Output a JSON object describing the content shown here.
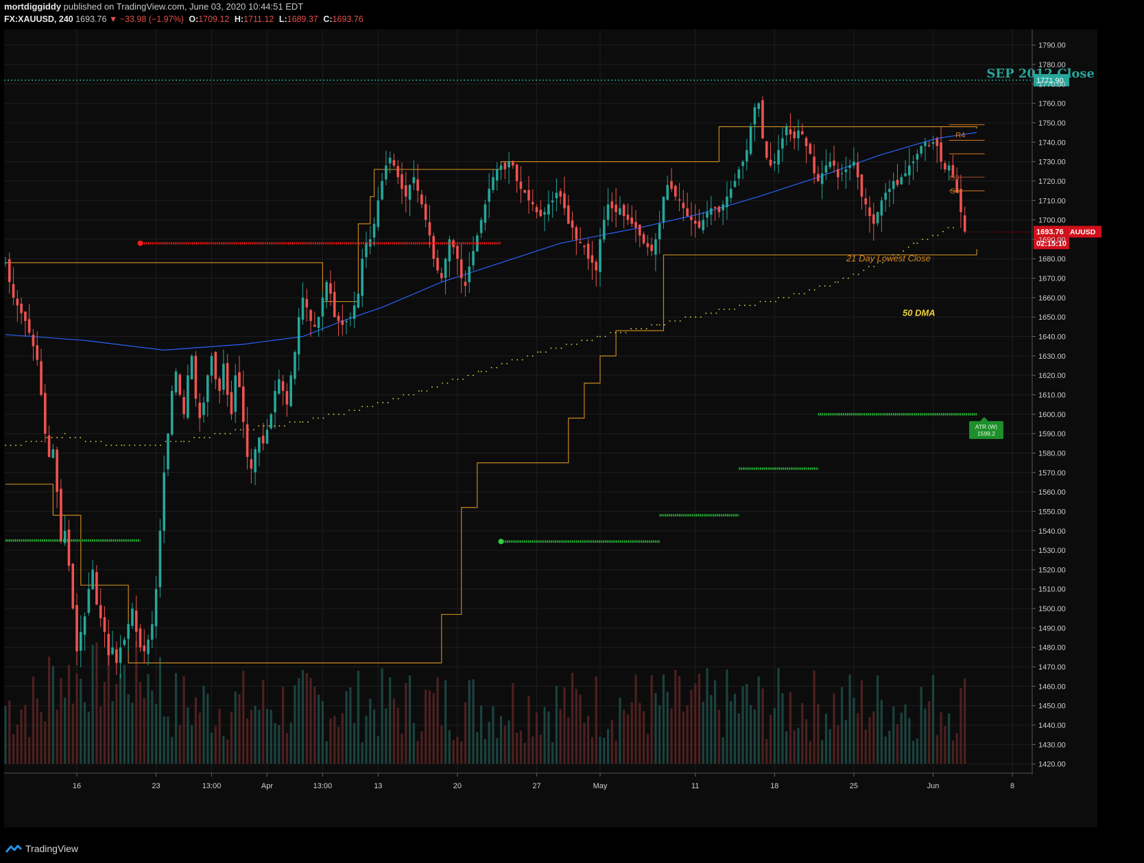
{
  "header": {
    "publisher": "mortdiggiddy",
    "published_text": "published on TradingView.com, June 03, 2020 10:44:51 EDT",
    "symbol": "FX:XAUUSD, 240",
    "last": "1693.76",
    "change": "▼ −33.98 (−1.97%)",
    "open_label": "O:",
    "open": "1709.12",
    "high_label": "H:",
    "high": "1711.12",
    "low_label": "L:",
    "low": "1689.37",
    "close_label": "C:",
    "close": "1693.76"
  },
  "footer": {
    "brand": "TradingView"
  },
  "colors": {
    "background": "#0c0c0c",
    "grid": "#1e1e1e",
    "up_candle": "#26a69a",
    "down_candle": "#ef5350",
    "ma_blue": "#2962ff",
    "lowest_close": "#c7871f",
    "dma50": "#e6e04a",
    "resistance_red": "#ff1a1a",
    "support_green": "#2ecc40",
    "sep2012": "#26a69a",
    "price_tag": "#d0101a"
  },
  "chart_data": {
    "type": "candlestick",
    "symbol": "XAUUSD",
    "timeframe": "240",
    "y_axis": {
      "range": [
        1416,
        1798
      ],
      "ticks": [
        "1790.00",
        "1780.00",
        "1770.00",
        "1760.00",
        "1750.00",
        "1740.00",
        "1730.00",
        "1720.00",
        "1710.00",
        "1700.00",
        "1690.00",
        "1680.00",
        "1670.00",
        "1660.00",
        "1650.00",
        "1640.00",
        "1630.00",
        "1620.00",
        "1610.00",
        "1600.00",
        "1590.00",
        "1580.00",
        "1570.00",
        "1560.00",
        "1550.00",
        "1540.00",
        "1530.00",
        "1520.00",
        "1510.00",
        "1500.00",
        "1490.00",
        "1480.00",
        "1470.00",
        "1460.00",
        "1450.00",
        "1440.00",
        "1430.00",
        "1420.00"
      ]
    },
    "x_axis": {
      "ticks": [
        {
          "label": "16",
          "bar": 18
        },
        {
          "label": "23",
          "bar": 38
        },
        {
          "label": "13:00",
          "bar": 52
        },
        {
          "label": "Apr",
          "bar": 66
        },
        {
          "label": "13:00",
          "bar": 80
        },
        {
          "label": "13",
          "bar": 94
        },
        {
          "label": "20",
          "bar": 114
        },
        {
          "label": "27",
          "bar": 134
        },
        {
          "label": "May",
          "bar": 150
        },
        {
          "label": "11",
          "bar": 174
        },
        {
          "label": "18",
          "bar": 194
        },
        {
          "label": "25",
          "bar": 214
        },
        {
          "label": "Jun",
          "bar": 234
        },
        {
          "label": "8",
          "bar": 254
        }
      ],
      "bar_count_range": [
        0,
        259
      ]
    },
    "closes": [
      1678,
      1668,
      1660,
      1656,
      1652,
      1648,
      1642,
      1635,
      1628,
      1610,
      1590,
      1578,
      1582,
      1560,
      1535,
      1540,
      1522,
      1500,
      1478,
      1488,
      1496,
      1510,
      1520,
      1502,
      1495,
      1488,
      1476,
      1480,
      1472,
      1480,
      1484,
      1492,
      1500,
      1488,
      1480,
      1478,
      1484,
      1492,
      1510,
      1540,
      1570,
      1590,
      1612,
      1622,
      1610,
      1600,
      1620,
      1630,
      1608,
      1598,
      1606,
      1620,
      1630,
      1618,
      1612,
      1626,
      1610,
      1600,
      1620,
      1614,
      1596,
      1578,
      1572,
      1582,
      1588,
      1585,
      1592,
      1600,
      1612,
      1618,
      1612,
      1605,
      1620,
      1632,
      1650,
      1660,
      1655,
      1648,
      1645,
      1650,
      1660,
      1668,
      1662,
      1650,
      1648,
      1646,
      1648,
      1650,
      1656,
      1662,
      1680,
      1688,
      1690,
      1698,
      1710,
      1720,
      1728,
      1732,
      1728,
      1722,
      1716,
      1712,
      1718,
      1722,
      1715,
      1708,
      1700,
      1692,
      1680,
      1674,
      1670,
      1680,
      1690,
      1686,
      1680,
      1670,
      1666,
      1676,
      1684,
      1692,
      1700,
      1708,
      1716,
      1722,
      1726,
      1728,
      1726,
      1730,
      1728,
      1720,
      1716,
      1714,
      1710,
      1708,
      1704,
      1702,
      1704,
      1708,
      1710,
      1714,
      1712,
      1706,
      1698,
      1696,
      1690,
      1688,
      1686,
      1680,
      1678,
      1674,
      1690,
      1700,
      1708,
      1706,
      1704,
      1706,
      1702,
      1700,
      1698,
      1696,
      1692,
      1688,
      1686,
      1684,
      1690,
      1698,
      1712,
      1718,
      1716,
      1712,
      1710,
      1706,
      1702,
      1700,
      1698,
      1696,
      1700,
      1704,
      1706,
      1706,
      1704,
      1708,
      1712,
      1716,
      1720,
      1726,
      1730,
      1736,
      1748,
      1758,
      1760,
      1742,
      1732,
      1728,
      1730,
      1736,
      1742,
      1748,
      1744,
      1742,
      1746,
      1744,
      1738,
      1734,
      1724,
      1720,
      1724,
      1728,
      1730,
      1728,
      1722,
      1724,
      1726,
      1728,
      1730,
      1722,
      1712,
      1708,
      1702,
      1698,
      1704,
      1710,
      1714,
      1716,
      1720,
      1718,
      1722,
      1724,
      1728,
      1730,
      1734,
      1738,
      1740,
      1738,
      1740,
      1738,
      1730,
      1726,
      1728,
      1722,
      1714,
      1704,
      1694
    ],
    "series": [
      {
        "name": "",
        "kind": "step",
        "points": [
          [
            0,
            1678
          ],
          [
            79,
            1678
          ],
          [
            80,
            1658
          ],
          [
            88,
            1658
          ],
          [
            89,
            1698
          ],
          [
            92,
            1712
          ],
          [
            93,
            1726
          ],
          [
            124,
            1726
          ],
          [
            125,
            1730
          ],
          [
            179,
            1730
          ],
          [
            180,
            1748
          ],
          [
            245,
            1747
          ]
        ]
      },
      {
        "name": "",
        "kind": "step",
        "points": [
          [
            0,
            1564
          ],
          [
            11,
            1564
          ],
          [
            12,
            1548
          ],
          [
            18,
            1548
          ],
          [
            19,
            1512
          ],
          [
            30,
            1512
          ],
          [
            31,
            1472
          ],
          [
            109,
            1472
          ],
          [
            110,
            1497
          ],
          [
            114,
            1497
          ],
          [
            115,
            1552
          ],
          [
            118,
            1552
          ],
          [
            119,
            1575
          ],
          [
            141,
            1575
          ],
          [
            142,
            1598
          ],
          [
            145,
            1598
          ],
          [
            146,
            1616
          ],
          [
            149,
            1616
          ],
          [
            150,
            1630
          ],
          [
            153,
            1630
          ],
          [
            154,
            1643
          ],
          [
            165,
            1643
          ],
          [
            166,
            1682
          ],
          [
            245,
            1685
          ]
        ]
      },
      {
        "name": "",
        "kind": "line",
        "points": [
          [
            0,
            1641
          ],
          [
            20,
            1638
          ],
          [
            40,
            1633
          ],
          [
            60,
            1636
          ],
          [
            75,
            1640
          ],
          [
            85,
            1648
          ],
          [
            95,
            1655
          ],
          [
            110,
            1668
          ],
          [
            125,
            1678
          ],
          [
            140,
            1688
          ],
          [
            160,
            1696
          ],
          [
            175,
            1703
          ],
          [
            190,
            1712
          ],
          [
            205,
            1722
          ],
          [
            220,
            1733
          ],
          [
            235,
            1742
          ],
          [
            245,
            1745
          ]
        ]
      },
      {
        "name": "50 DMA",
        "kind": "dotted",
        "points": [
          [
            0,
            1583
          ],
          [
            15,
            1589
          ],
          [
            30,
            1583
          ],
          [
            45,
            1586
          ],
          [
            60,
            1592
          ],
          [
            75,
            1596
          ],
          [
            90,
            1603
          ],
          [
            105,
            1612
          ],
          [
            120,
            1622
          ],
          [
            135,
            1632
          ],
          [
            150,
            1640
          ],
          [
            165,
            1646
          ],
          [
            180,
            1653
          ],
          [
            195,
            1659
          ],
          [
            210,
            1668
          ],
          [
            220,
            1677
          ],
          [
            230,
            1688
          ],
          [
            240,
            1697
          ]
        ]
      }
    ],
    "hlines": [
      {
        "name": "SEP 2012 Close",
        "value": 1771.9,
        "label": "1771.90"
      },
      {
        "name": "",
        "value": 1688,
        "from": 34,
        "to": 125
      },
      {
        "name": "",
        "value": 1535,
        "from": 0,
        "to": 34
      },
      {
        "name": "",
        "value": 1534.5,
        "from": 125,
        "to": 165
      },
      {
        "name": "",
        "value": 1548,
        "from": 165,
        "to": 185
      },
      {
        "name": "",
        "value": 1572,
        "from": 185,
        "to": 205
      },
      {
        "name": "",
        "value": 1600,
        "from": 205,
        "to": 245
      }
    ],
    "annotations": {
      "sep2012": "SEP 2012 Close",
      "lowest_close": "21 Day Lowest Close",
      "dma": "50 DMA",
      "atr_label": "ATR (W)",
      "atr_value": "1599.2",
      "r4": "R4",
      "s3": "S3",
      "s4": "S4"
    },
    "price_tag": {
      "symbol": "XAUUSD",
      "value": "1693.76",
      "countdown": "02:15:10"
    },
    "volume": "shown as histogram at bottom"
  }
}
